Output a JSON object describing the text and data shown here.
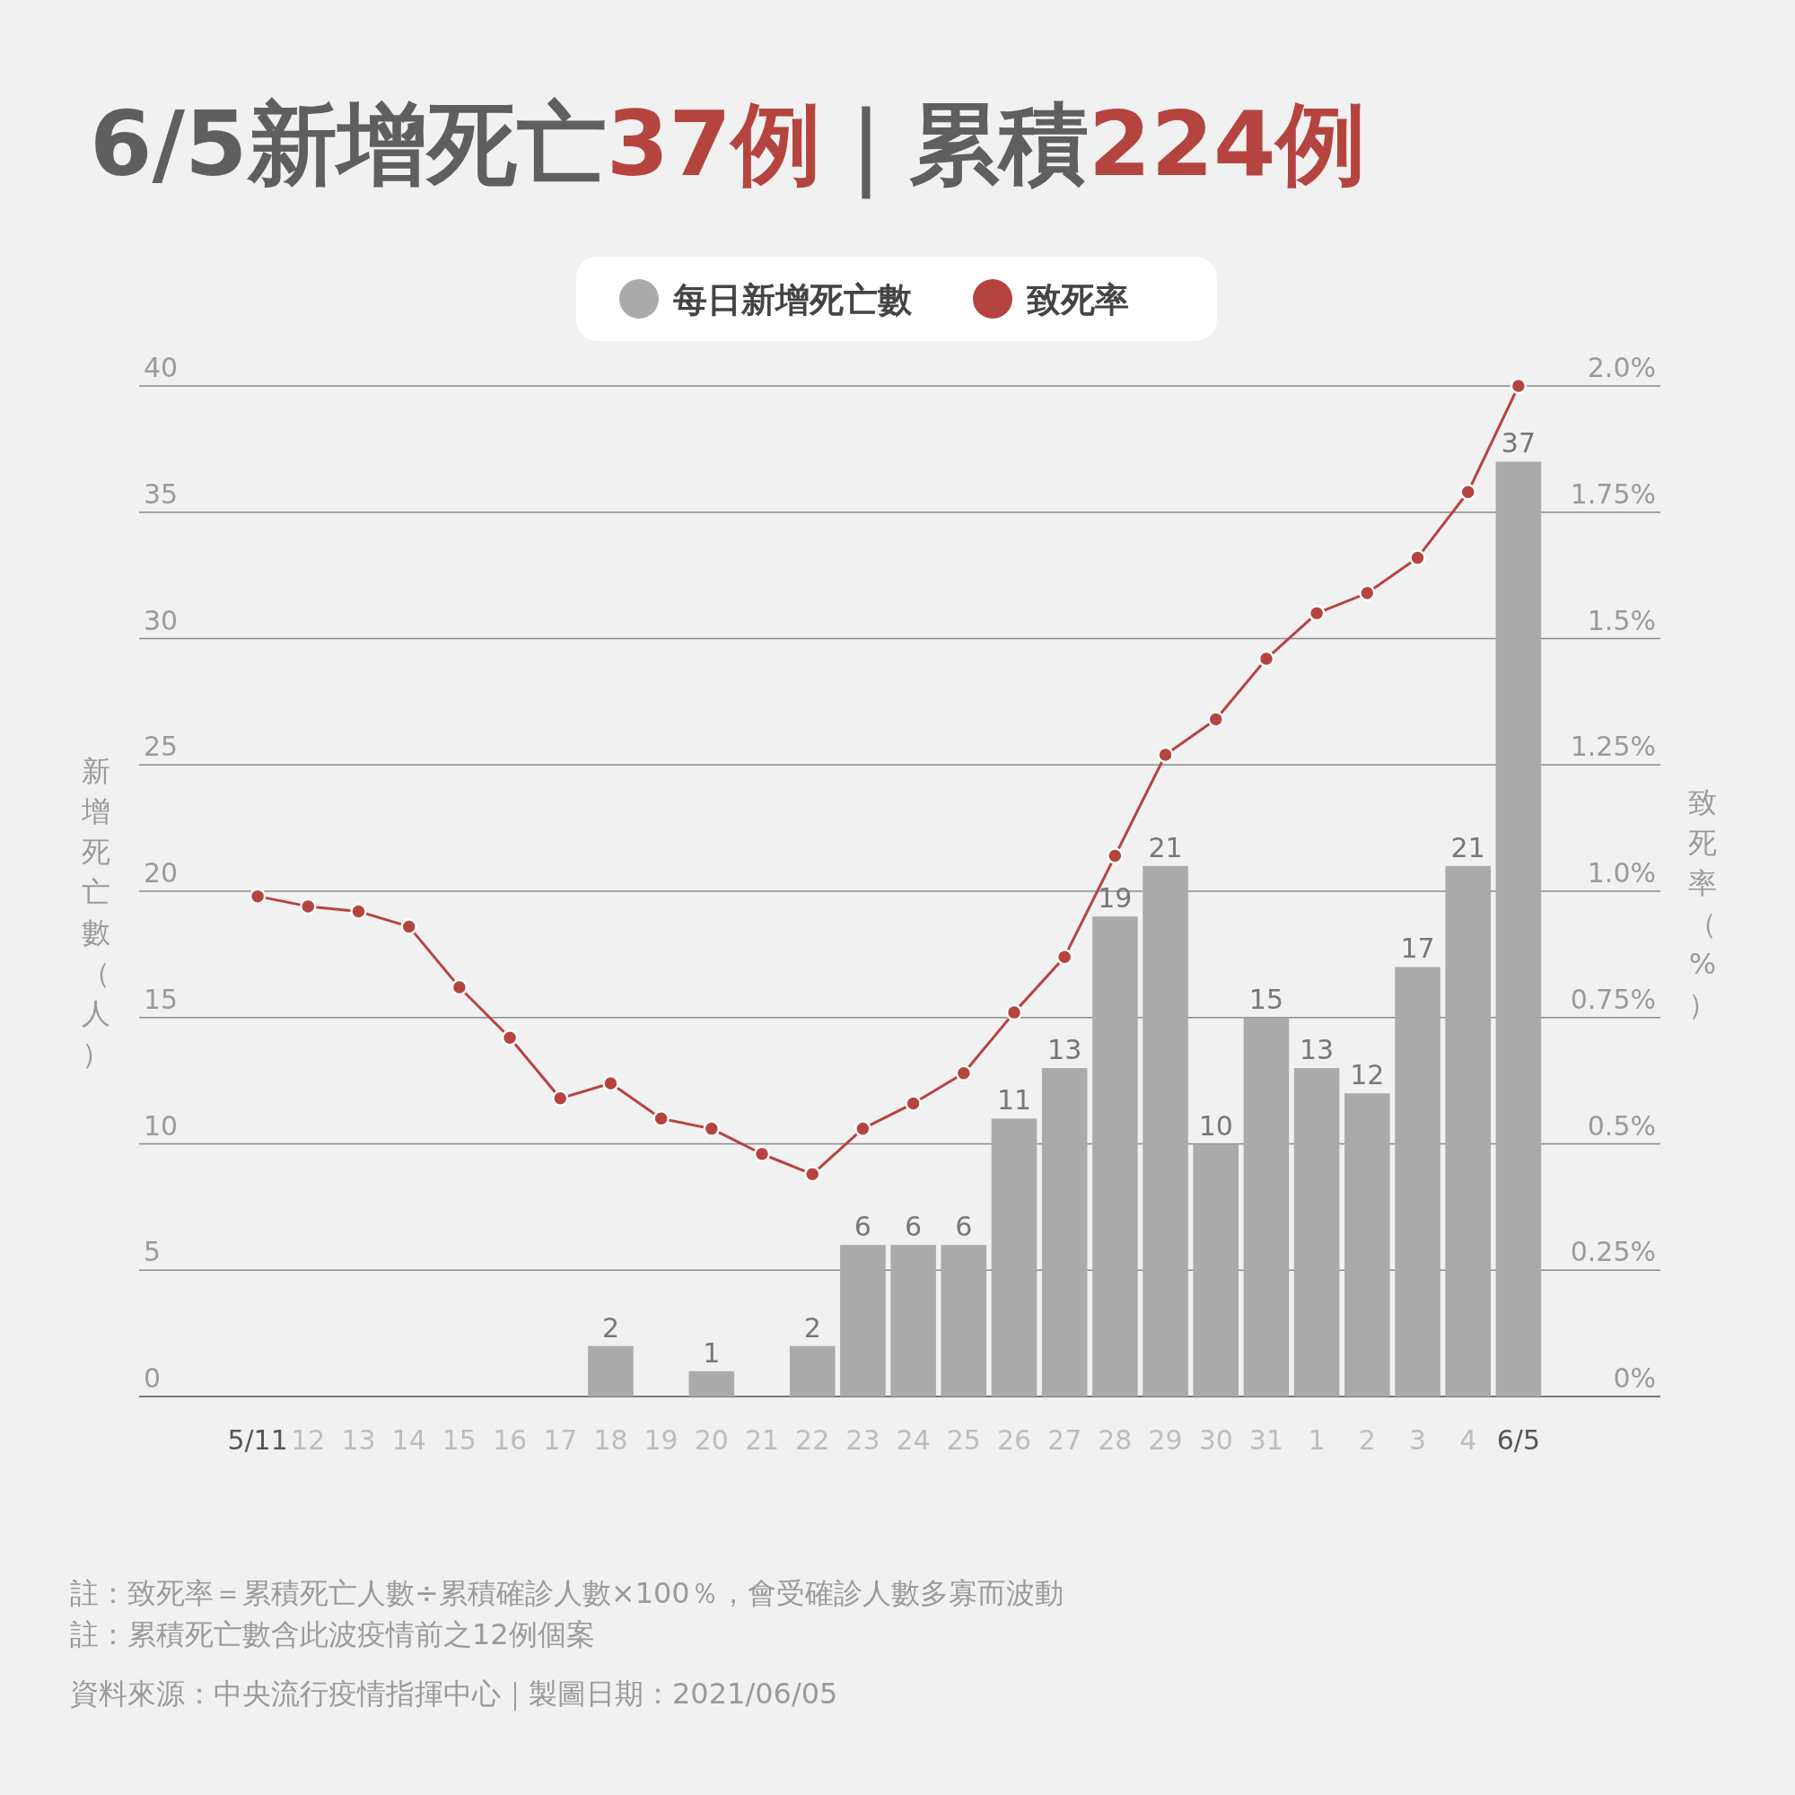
{
  "chart_data": {
    "type": "bar",
    "title": "6/5新增死亡37例｜累積224例",
    "categories": [
      "5/11",
      "12",
      "13",
      "14",
      "15",
      "16",
      "17",
      "18",
      "19",
      "20",
      "21",
      "22",
      "23",
      "24",
      "25",
      "26",
      "27",
      "28",
      "29",
      "30",
      "31",
      "1",
      "2",
      "3",
      "4",
      "6/5"
    ],
    "series": [
      {
        "name": "每日新增死亡數",
        "color": "#aaaaaa",
        "values": [
          0,
          0,
          0,
          0,
          0,
          0,
          0,
          2,
          0,
          1,
          0,
          2,
          6,
          6,
          6,
          11,
          13,
          19,
          21,
          10,
          15,
          13,
          12,
          17,
          21,
          37
        ],
        "value_labels": [
          null,
          null,
          null,
          null,
          null,
          null,
          null,
          "2",
          null,
          "1",
          null,
          "2",
          "6",
          "6",
          "6",
          "11",
          "13",
          "19",
          "21",
          "10",
          "15",
          "13",
          "12",
          "17",
          "21",
          "37"
        ]
      },
      {
        "name": "致死率",
        "type": "line",
        "axis": "y2",
        "color": "#b5443f",
        "values": [
          0.99,
          0.97,
          0.96,
          0.93,
          0.81,
          0.71,
          0.59,
          0.62,
          0.55,
          0.53,
          0.48,
          0.44,
          0.53,
          0.58,
          0.64,
          0.76,
          0.87,
          1.07,
          1.27,
          1.34,
          1.46,
          1.55,
          1.59,
          1.66,
          1.79,
          2.0
        ]
      }
    ],
    "ylim": [
      0,
      40
    ],
    "yticks": [
      0,
      5,
      10,
      15,
      20,
      25,
      30,
      35,
      40
    ],
    "y2lim": [
      0,
      2
    ],
    "y2ticks": [
      {
        "value": 0,
        "label": "0%"
      },
      {
        "value": 0.25,
        "label": "0.25%"
      },
      {
        "value": 0.5,
        "label": "0.5%"
      },
      {
        "value": 0.75,
        "label": "0.75%"
      },
      {
        "value": 1,
        "label": "1.0%"
      },
      {
        "value": 1.25,
        "label": "1.25%"
      },
      {
        "value": 1.5,
        "label": "1.5%"
      },
      {
        "value": 1.75,
        "label": "1.75%"
      },
      {
        "value": 2,
        "label": "2.0%"
      }
    ],
    "ylabel": "新增死亡數（人）",
    "y2label": "致死率（%）",
    "grid": "y",
    "legend": "top",
    "marker": "circle",
    "annotations": [
      "註：致死率＝累積死亡人數÷累積確診人數×100％，會受確診人數多寡而波動",
      "註：累積死亡數含此波疫情前之12例個案",
      "資料來源：中央流行疫情指揮中心｜製圖日期：2021/06/05"
    ]
  }
}
